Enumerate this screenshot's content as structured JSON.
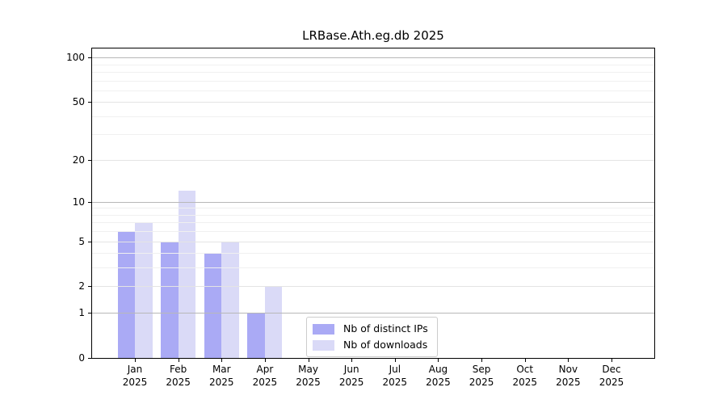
{
  "chart_data": {
    "type": "bar",
    "title": "LRBase.Ath.eg.db 2025",
    "year": "2025",
    "categories": [
      "Jan",
      "Feb",
      "Mar",
      "Apr",
      "May",
      "Jun",
      "Jul",
      "Aug",
      "Sep",
      "Oct",
      "Nov",
      "Dec"
    ],
    "series": [
      {
        "name": "Nb of distinct IPs",
        "color": "#aaaaf5",
        "values": [
          6,
          5,
          4,
          1,
          0,
          0,
          0,
          0,
          0,
          0,
          0,
          0
        ]
      },
      {
        "name": "Nb of downloads",
        "color": "#dadaf7",
        "values": [
          7,
          12,
          5,
          2,
          0,
          0,
          0,
          0,
          0,
          0,
          0,
          0
        ]
      }
    ],
    "xlabel": "",
    "ylabel": "",
    "y_scale": "log1p",
    "ylim": [
      0,
      115
    ],
    "y_ticks": [
      0,
      1,
      2,
      5,
      10,
      20,
      50,
      100
    ],
    "y_minor_ticks": [
      3,
      4,
      6,
      7,
      8,
      9,
      30,
      40,
      60,
      70,
      80,
      90
    ],
    "grid": true,
    "legend_position": "lower center",
    "grid_colors": {
      "decade": "#b8b8b8",
      "labeled": "#e4e4e4",
      "minor": "#f0f0f0"
    },
    "axis_color": "#000000",
    "background": "#ffffff"
  }
}
